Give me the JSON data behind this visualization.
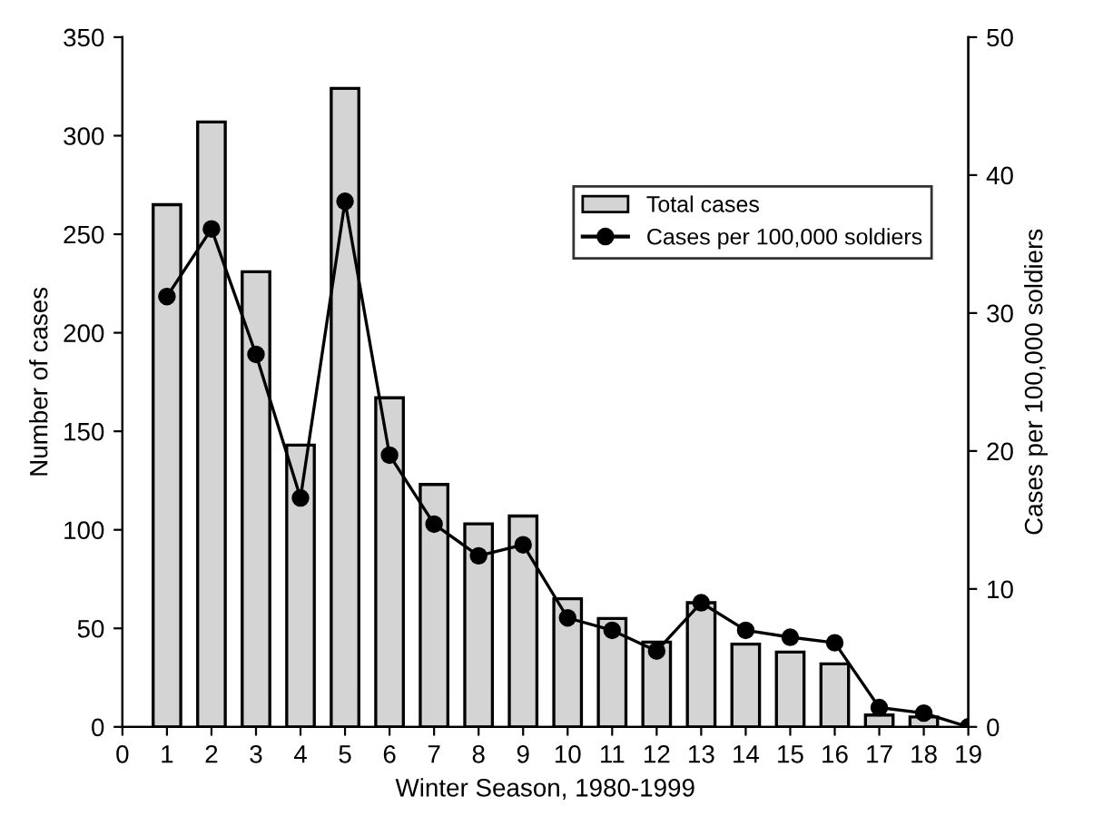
{
  "chart_data": {
    "type": "bar",
    "x": [
      1,
      2,
      3,
      4,
      5,
      6,
      7,
      8,
      9,
      10,
      11,
      12,
      13,
      14,
      15,
      16,
      17,
      18,
      19
    ],
    "series": [
      {
        "name": "Total cases",
        "color": "#d4d4d4",
        "values": [
          265,
          307,
          231,
          143,
          324,
          167,
          123,
          103,
          107,
          65,
          55,
          43,
          63,
          42,
          38,
          32,
          6,
          5,
          null
        ]
      },
      {
        "name": "Cases per 100,000 soldiers",
        "type": "line",
        "axis": "y2",
        "color": "#000000",
        "marker": "circle",
        "values": [
          31.2,
          36.1,
          27.0,
          16.6,
          38.1,
          19.7,
          14.7,
          12.4,
          13.2,
          7.9,
          7.0,
          5.5,
          9.0,
          7.0,
          6.5,
          6.1,
          1.4,
          1.0,
          0
        ]
      }
    ],
    "xlabel": "Winter Season, 1980-1999",
    "ylabel": "Number of cases",
    "y2label": "Cases per 100,000 soldiers",
    "xlim": [
      0,
      19
    ],
    "xticks": [
      0,
      1,
      2,
      3,
      4,
      5,
      6,
      7,
      8,
      9,
      10,
      11,
      12,
      13,
      14,
      15,
      16,
      17,
      18,
      19
    ],
    "ylim": [
      0,
      350
    ],
    "yticks": [
      0,
      50,
      100,
      150,
      200,
      250,
      300,
      350
    ],
    "y2lim": [
      0,
      50
    ],
    "y2ticks": [
      0,
      10,
      20,
      30,
      40,
      50
    ],
    "grid": false,
    "legend": "top right"
  }
}
